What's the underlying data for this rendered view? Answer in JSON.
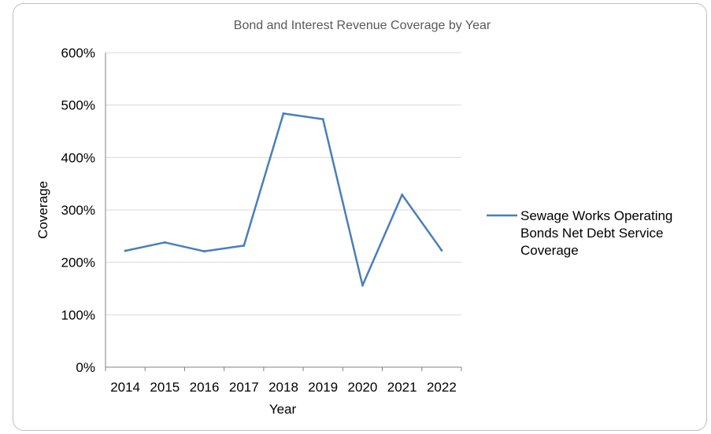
{
  "chart_data": {
    "type": "line",
    "title": "Bond and Interest Revenue Coverage by Year",
    "xlabel": "Year",
    "ylabel": "Coverage",
    "categories": [
      "2014",
      "2015",
      "2016",
      "2017",
      "2018",
      "2019",
      "2020",
      "2021",
      "2022"
    ],
    "series": [
      {
        "name": "Sewage Works Operating Bonds Net Debt Service Coverage",
        "legend_lines": [
          "Sewage Works Operating",
          "Bonds Net Debt Service",
          "Coverage"
        ],
        "values": [
          222,
          238,
          221,
          232,
          484,
          473,
          156,
          329,
          223
        ],
        "color": "#4a7ebb"
      }
    ],
    "ylim": [
      0,
      600
    ],
    "yticks": [
      0,
      100,
      200,
      300,
      400,
      500,
      600
    ],
    "ytick_labels": [
      "0%",
      "100%",
      "200%",
      "300%",
      "400%",
      "500%",
      "600%"
    ],
    "grid": true,
    "legend_position": "right",
    "colors": {
      "gridline": "#d9d9d9",
      "axis": "#808080",
      "series": "#4a7ebb"
    }
  }
}
